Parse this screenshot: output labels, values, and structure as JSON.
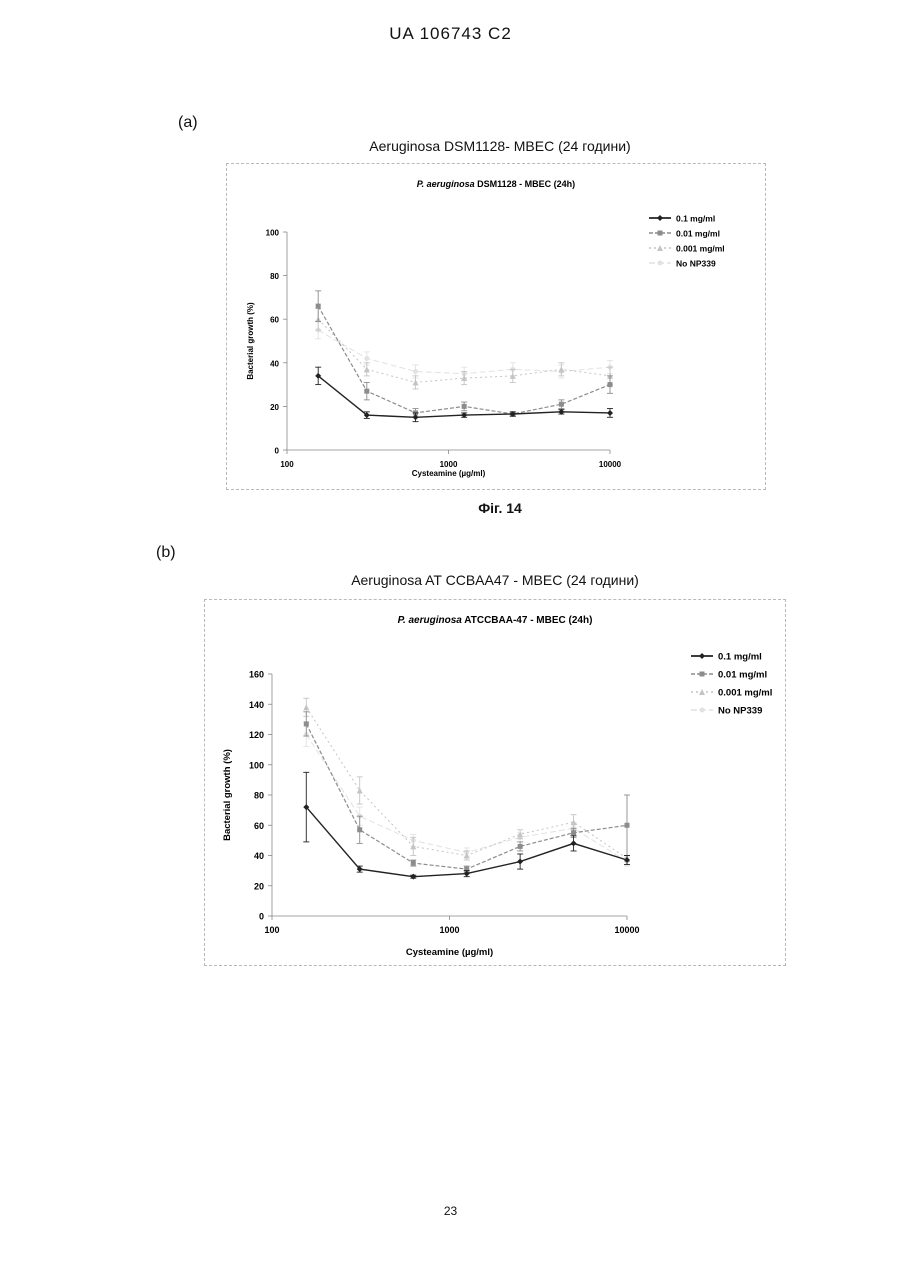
{
  "header": {
    "doc_number": "UA  106743  C2"
  },
  "figure": {
    "caption": "Фіг. 14"
  },
  "page_number": "23",
  "colors": {
    "s1": "#222222",
    "s2": "#8c8c8c",
    "s3": "#c4c4c4",
    "s4": "#e2e2e2"
  },
  "chart_data": [
    {
      "type": "line",
      "panel_label": "(a)",
      "outer_title": "Aeruginosa DSM1128- MBEC (24 години)",
      "title_italic": "P. aeruginosa",
      "title_rest": " DSM1128 - MBEC (24h)",
      "xlabel": "Cysteamine (µg/ml)",
      "ylabel": "Bacterial growth (%)",
      "x_scale": "log",
      "xlim": [
        100,
        10000
      ],
      "ylim": [
        0,
        100
      ],
      "x_ticks": [
        100,
        1000,
        10000
      ],
      "y_ticks": [
        0,
        20,
        40,
        60,
        80,
        100
      ],
      "x": [
        156,
        312,
        625,
        1250,
        2500,
        5000,
        10000
      ],
      "legend_position": "top-right",
      "series": [
        {
          "name": "0.1 mg/ml",
          "values": [
            34,
            16,
            15,
            16,
            16.5,
            17.5,
            17
          ],
          "errors": [
            4,
            1.5,
            2,
            1,
            1,
            1,
            2
          ]
        },
        {
          "name": "0.01 mg/ml",
          "values": [
            66,
            27,
            17,
            20,
            16.5,
            21,
            30
          ],
          "errors": [
            7,
            4,
            2,
            2,
            1,
            2,
            4
          ]
        },
        {
          "name": "0.001 mg/ml",
          "values": [
            60,
            37,
            31,
            33,
            34,
            37,
            34
          ],
          "errors": [
            5,
            3,
            3,
            3,
            3,
            3,
            4
          ]
        },
        {
          "name": "No NP339",
          "values": [
            55,
            42,
            36,
            35,
            37,
            36,
            38
          ],
          "errors": [
            4,
            3,
            3,
            3,
            3,
            3,
            3
          ]
        }
      ]
    },
    {
      "type": "line",
      "panel_label": "(b)",
      "outer_title": "Aeruginosa AT CCBAA47 - MBEC (24 години)",
      "title_italic": "P. aeruginosa",
      "title_rest": " ATCCBAA-47 - MBEC (24h)",
      "xlabel": "Cysteamine (µg/ml)",
      "ylabel": "Bacterial growth (%)",
      "x_scale": "log",
      "xlim": [
        100,
        10000
      ],
      "ylim": [
        0,
        160
      ],
      "x_ticks": [
        100,
        1000,
        10000
      ],
      "y_ticks": [
        0,
        20,
        40,
        60,
        80,
        100,
        120,
        140,
        160
      ],
      "x": [
        156,
        312,
        625,
        1250,
        2500,
        5000,
        10000
      ],
      "legend_position": "top-right",
      "series": [
        {
          "name": "0.1 mg/ml",
          "values": [
            72,
            31,
            26,
            28,
            36,
            48,
            37
          ],
          "errors": [
            23,
            2,
            1,
            2,
            5,
            5,
            3
          ]
        },
        {
          "name": "0.01 mg/ml",
          "values": [
            127,
            57,
            35,
            31,
            46,
            55,
            60
          ],
          "errors": [
            8,
            9,
            2,
            2,
            3,
            3,
            20
          ]
        },
        {
          "name": "0.001 mg/ml",
          "values": [
            138,
            83,
            46,
            40,
            54,
            62,
            38
          ],
          "errors": [
            6,
            9,
            6,
            3,
            3,
            5,
            2
          ]
        },
        {
          "name": "No NP339",
          "values": [
            120,
            66,
            50,
            42,
            52,
            58,
            36
          ],
          "errors": [
            8,
            6,
            4,
            3,
            3,
            4,
            3
          ]
        }
      ]
    }
  ]
}
